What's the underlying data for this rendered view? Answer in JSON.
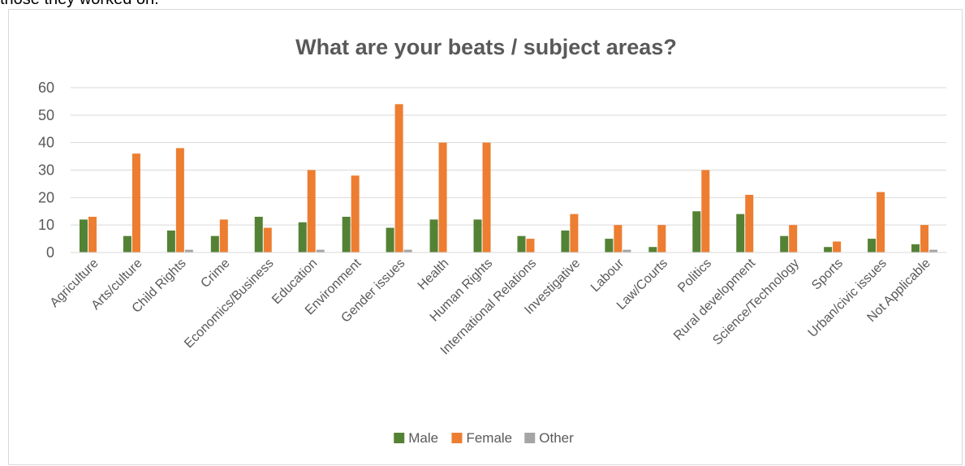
{
  "caption_fragment": "those they worked on.",
  "chart_data": {
    "type": "bar",
    "title": "What are your beats / subject areas?",
    "xlabel": "",
    "ylabel": "",
    "ylim": [
      0,
      60
    ],
    "yticks": [
      0,
      10,
      20,
      30,
      40,
      50,
      60
    ],
    "grid": true,
    "legend_position": "bottom",
    "categories": [
      "Agriculture",
      "Arts/culture",
      "Child Rights",
      "Crime",
      "Economics/Business",
      "Education",
      "Environment",
      "Gender issues",
      "Health",
      "Human Rights",
      "International Relations",
      "Investigative",
      "Labour",
      "Law/Courts",
      "Politics",
      "Rural development",
      "Science/Technology",
      "Sports",
      "Urban/civic issues",
      "Not Applicable"
    ],
    "series": [
      {
        "name": "Male",
        "color": "#548235",
        "values": [
          12,
          6,
          8,
          6,
          13,
          11,
          13,
          9,
          12,
          12,
          6,
          8,
          5,
          2,
          15,
          14,
          6,
          2,
          5,
          3
        ]
      },
      {
        "name": "Female",
        "color": "#ED7D31",
        "values": [
          13,
          36,
          38,
          12,
          9,
          30,
          28,
          54,
          40,
          40,
          5,
          14,
          10,
          10,
          30,
          21,
          10,
          4,
          22,
          10
        ]
      },
      {
        "name": "Other",
        "color": "#A5A5A5",
        "values": [
          0,
          0,
          1,
          0,
          0,
          1,
          0,
          1,
          0,
          0,
          0,
          0,
          1,
          0,
          0,
          0,
          0,
          0,
          0,
          1
        ]
      }
    ]
  }
}
